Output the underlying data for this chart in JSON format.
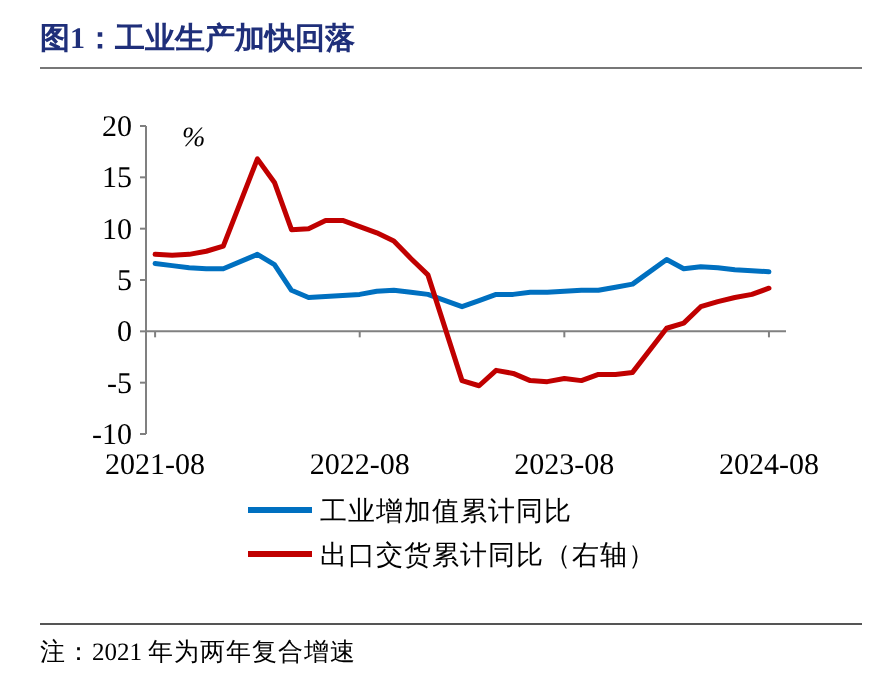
{
  "chart_data": {
    "type": "line",
    "title": "图1：工业生产加快回落",
    "ylabel": "%",
    "x": [
      "2021-08",
      "2021-09",
      "2021-10",
      "2021-11",
      "2021-12",
      "2022-02",
      "2022-03",
      "2022-04",
      "2022-05",
      "2022-06",
      "2022-07",
      "2022-08",
      "2022-09",
      "2022-10",
      "2022-11",
      "2022-12",
      "2023-02",
      "2023-03",
      "2023-04",
      "2023-05",
      "2023-06",
      "2023-07",
      "2023-08",
      "2023-09",
      "2023-10",
      "2023-11",
      "2023-12",
      "2024-02",
      "2024-03",
      "2024-04",
      "2024-05",
      "2024-06",
      "2024-07",
      "2024-08"
    ],
    "series": [
      {
        "name": "工业增加值累计同比",
        "color": "#0070c0",
        "values": [
          6.6,
          6.4,
          6.2,
          6.1,
          6.1,
          7.5,
          6.5,
          4.0,
          3.3,
          3.4,
          3.5,
          3.6,
          3.9,
          4.0,
          3.8,
          3.6,
          2.4,
          3.0,
          3.6,
          3.6,
          3.8,
          3.8,
          3.9,
          4.0,
          4.0,
          4.3,
          4.6,
          7.0,
          6.1,
          6.3,
          6.2,
          6.0,
          5.9,
          5.8
        ]
      },
      {
        "name": "出口交货累计同比（右轴）",
        "color": "#c00000",
        "values": [
          7.5,
          7.4,
          7.5,
          7.8,
          8.3,
          16.8,
          14.5,
          9.9,
          10.0,
          10.8,
          10.8,
          10.2,
          9.6,
          8.8,
          7.1,
          5.5,
          -4.8,
          -5.3,
          -3.8,
          -4.1,
          -4.8,
          -4.9,
          -4.6,
          -4.8,
          -4.2,
          -4.2,
          -4.0,
          0.3,
          0.8,
          2.4,
          2.9,
          3.3,
          3.6,
          4.2
        ]
      }
    ],
    "xlim": [
      "2021-07-15",
      "2024-09-01"
    ],
    "xticks": [
      "2021-08",
      "2022-08",
      "2023-08",
      "2024-08"
    ],
    "ylim": [
      -10,
      20
    ],
    "yticks": [
      -10,
      -5,
      0,
      5,
      10,
      15,
      20
    ],
    "legend": "bottom",
    "annotations": [
      "注：2021 年为两年复合增速"
    ]
  }
}
